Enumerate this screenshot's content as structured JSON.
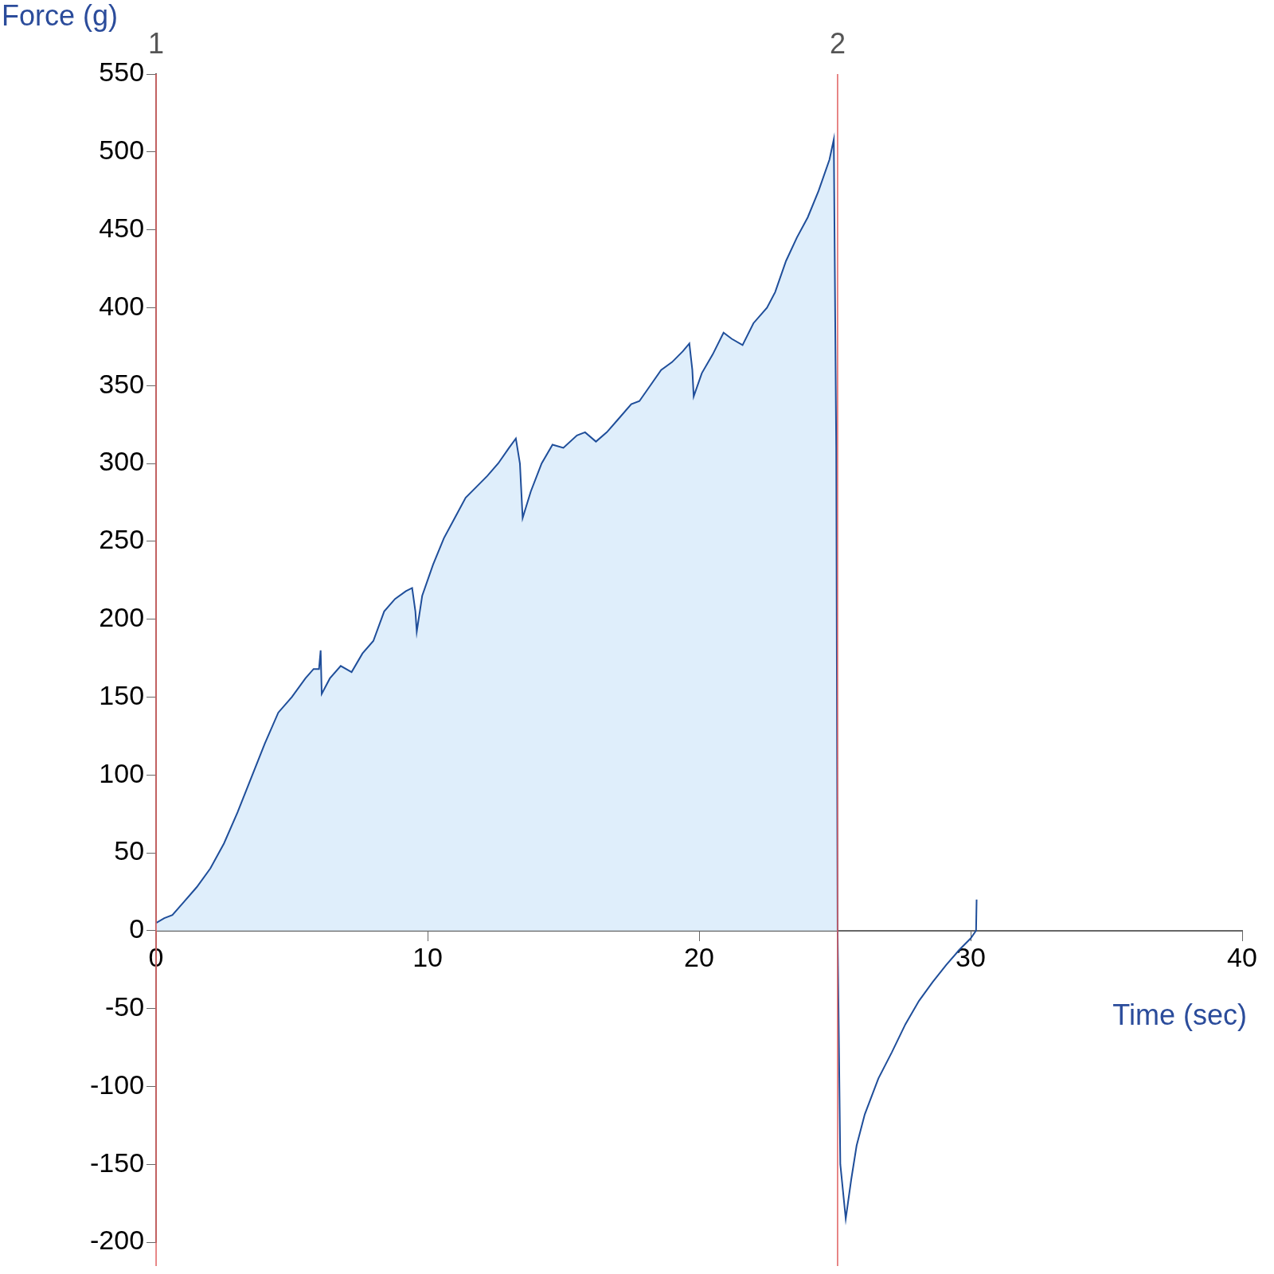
{
  "chart_data": {
    "type": "line",
    "x_label": "Time (sec)",
    "y_label": "Force (g)",
    "color": "#1f4e9a",
    "x": [
      0,
      0.3,
      0.6,
      1,
      1.5,
      2,
      2.5,
      3,
      3.5,
      4,
      4.5,
      5,
      5.5,
      5.8,
      6.0,
      6.06,
      6.1,
      6.4,
      6.8,
      7.2,
      7.6,
      8,
      8.4,
      8.8,
      9.2,
      9.43,
      9.55,
      9.6,
      9.8,
      10.2,
      10.6,
      11,
      11.4,
      11.8,
      12.2,
      12.6,
      13,
      13.25,
      13.4,
      13.5,
      13.8,
      14.2,
      14.6,
      15,
      15.5,
      15.8,
      16.2,
      16.6,
      17,
      17.5,
      17.8,
      18.2,
      18.6,
      19,
      19.4,
      19.64,
      19.75,
      19.8,
      20.1,
      20.5,
      20.9,
      21.2,
      21.6,
      22,
      22.5,
      22.8,
      23.2,
      23.6,
      24,
      24.4,
      24.8,
      24.96,
      25.05,
      25.1,
      25.2,
      25.4,
      25.6,
      25.8,
      26.1,
      26.6,
      27.1,
      27.6,
      28.1,
      28.6,
      29.1,
      29.6,
      30.0,
      30.2,
      30.22
    ],
    "values": [
      5,
      8,
      10,
      18,
      28,
      40,
      56,
      76,
      98,
      120,
      140,
      150,
      162,
      168,
      168,
      180,
      152,
      162,
      170,
      166,
      178,
      186,
      205,
      213,
      218,
      220,
      205,
      192,
      215,
      235,
      252,
      265,
      278,
      285,
      292,
      300,
      310,
      316,
      300,
      265,
      282,
      300,
      312,
      310,
      318,
      320,
      314,
      320,
      328,
      338,
      340,
      350,
      360,
      365,
      372,
      377,
      360,
      343,
      358,
      370,
      384,
      380,
      376,
      390,
      400,
      410,
      430,
      445,
      458,
      475,
      495,
      508,
      310,
      0,
      -150,
      -185,
      -160,
      -138,
      -118,
      -95,
      -78,
      -60,
      -45,
      -33,
      -22,
      -12,
      -5,
      0,
      20
    ],
    "xlim": [
      0,
      40
    ],
    "ylim": [
      -200,
      550
    ],
    "xticks": [
      0,
      10,
      20,
      30,
      40
    ],
    "yticks": [
      -200,
      -150,
      -100,
      -50,
      0,
      50,
      100,
      150,
      200,
      250,
      300,
      350,
      400,
      450,
      500,
      550
    ],
    "grid": false,
    "annotations": [
      {
        "x": 0,
        "label": "1"
      },
      {
        "x": 25.1,
        "label": "2"
      }
    ]
  }
}
